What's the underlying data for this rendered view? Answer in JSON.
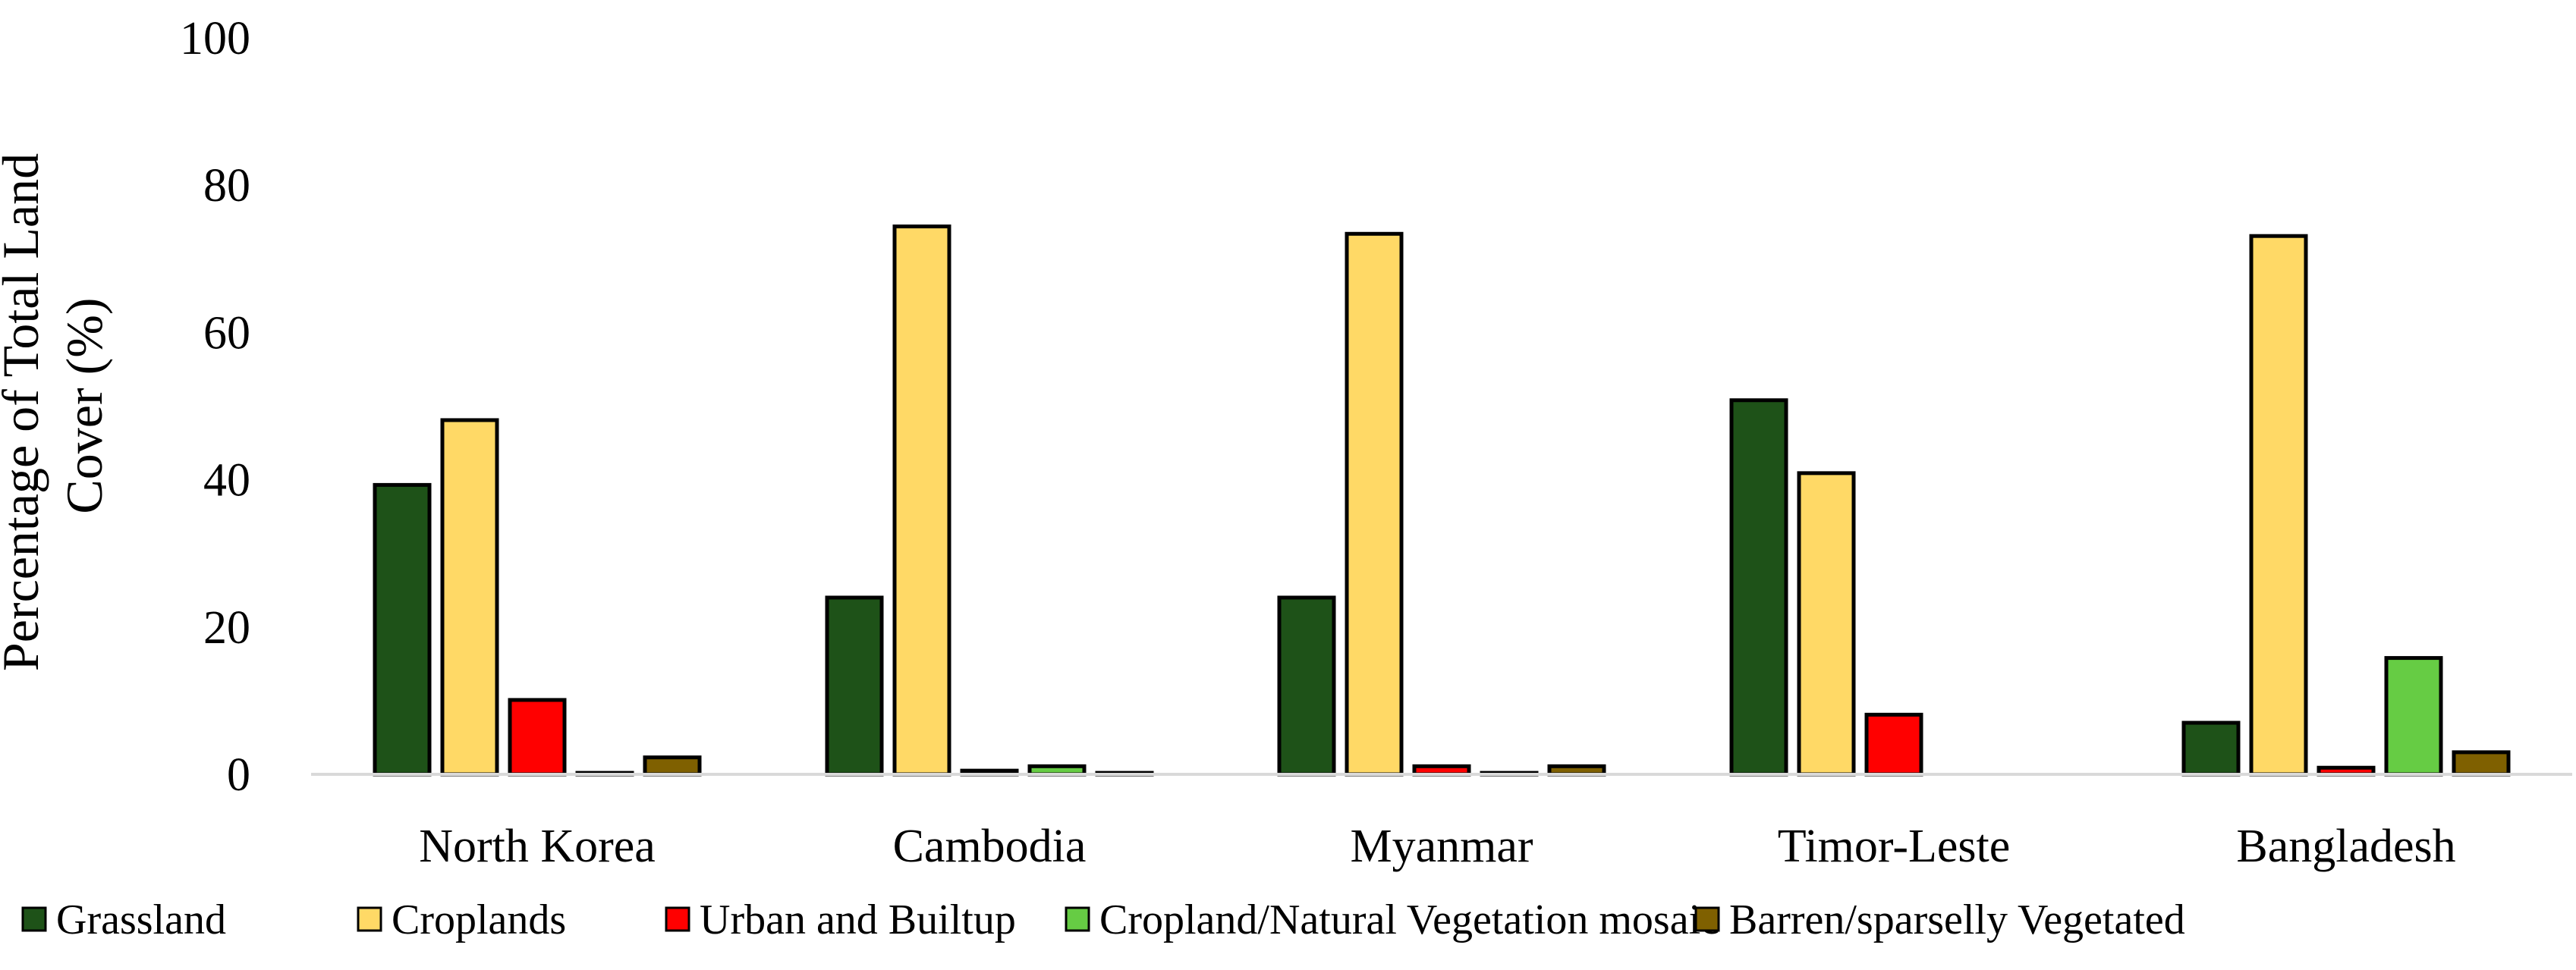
{
  "chart_data": {
    "type": "bar",
    "title": "",
    "xlabel": "",
    "ylabel_lines": [
      "Percentage of Total Land",
      "Cover (%)"
    ],
    "ylim": [
      0,
      100
    ],
    "yticks": [
      0,
      20,
      40,
      60,
      80,
      100
    ],
    "categories": [
      "North Korea",
      "Cambodia",
      "Myanmar",
      "Timor-Leste",
      "Bangladesh"
    ],
    "series": [
      {
        "name": "Grassland",
        "color": "#1E5218",
        "values": [
          39.3,
          24.0,
          24.0,
          50.8,
          7.0
        ]
      },
      {
        "name": "Croplands",
        "color": "#FFD966",
        "values": [
          48.1,
          74.4,
          73.4,
          40.9,
          73.1
        ]
      },
      {
        "name": "Urban and Builtup",
        "color": "#FF0000",
        "values": [
          10.1,
          0.5,
          1.1,
          8.1,
          0.9
        ]
      },
      {
        "name": "Cropland/Natural Vegetation mosaic",
        "color": "#66CC44",
        "values": [
          0.2,
          1.1,
          0.2,
          0.0,
          15.8
        ]
      },
      {
        "name": "Barren/sparselly Vegetated",
        "color": "#7F6000",
        "values": [
          2.3,
          0.2,
          1.1,
          0.0,
          3.0
        ]
      }
    ],
    "legend_position": "bottom",
    "grid": false
  }
}
